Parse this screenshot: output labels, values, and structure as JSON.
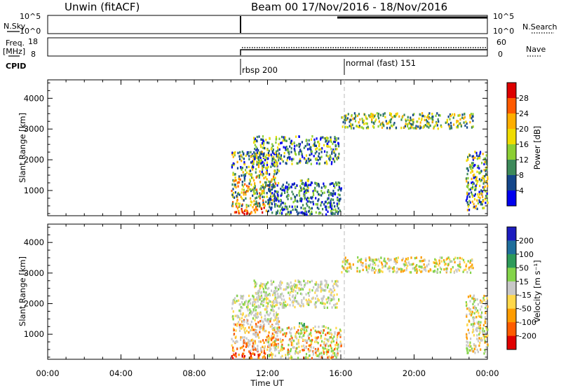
{
  "header": {
    "station": "Unwin (fitACF)",
    "beam_info": "Beam 00  17/Nov/2016 - 18/Nov/2016"
  },
  "status_panels": {
    "nsky_label": "N.Sky",
    "nsearch_label": "N.Search",
    "freq_label_line1": "Freq.",
    "freq_label_line2": "[MHz]",
    "nave_label": "Nave",
    "cpid_label": "CPID",
    "nsky_ticks": [
      "10^5",
      "10^0"
    ],
    "nsearch_ticks": [
      "10^5",
      "10^0"
    ],
    "freq_ticks": [
      "18",
      "8"
    ],
    "nave_ticks": [
      "60",
      "0"
    ],
    "freq_ylim": [
      8,
      18
    ],
    "nave_ylim": [
      0,
      60
    ],
    "cpid_segments": [
      {
        "label": "rbsp 200",
        "start_hour": 10.0
      },
      {
        "label": "normal (fast) 151",
        "start_hour": 16.0
      }
    ]
  },
  "chart_data": [
    {
      "type": "heatmap",
      "panel": "power",
      "ylabel": "Slant Range [km]",
      "xlabel": "",
      "xlim_hours": [
        0,
        24
      ],
      "ylim": [
        180,
        4600
      ],
      "yticks": [
        1000,
        2000,
        3000,
        4000
      ],
      "colorbar": {
        "label": "Power [dB]",
        "ticks": [
          "28",
          "24",
          "20",
          "16",
          "12",
          "8",
          "4"
        ],
        "colors": [
          "#dd0000",
          "#ff5a00",
          "#ffae00",
          "#f0dc00",
          "#8ccf34",
          "#3d8a5a",
          "#14468a",
          "#0000ee"
        ]
      },
      "data_window_hours": [
        10.0,
        24.0
      ],
      "regions": [
        {
          "t": [
            10.0,
            11.9
          ],
          "r": [
            250,
            500
          ],
          "levels": [
            0,
            1,
            2
          ]
        },
        {
          "t": [
            10.0,
            12.6
          ],
          "r": [
            500,
            1500
          ],
          "levels": [
            1,
            2,
            3,
            4,
            5,
            6
          ]
        },
        {
          "t": [
            10.0,
            12.6
          ],
          "r": [
            1500,
            2300
          ],
          "levels": [
            2,
            3,
            4,
            5,
            6,
            7
          ]
        },
        {
          "t": [
            11.2,
            15.9
          ],
          "r": [
            1900,
            2800
          ],
          "levels": [
            3,
            4,
            5,
            6,
            7
          ]
        },
        {
          "t": [
            13.7,
            14.2
          ],
          "r": [
            1000,
            1400
          ],
          "levels": [
            3,
            4,
            5
          ]
        },
        {
          "t": [
            12.0,
            16.0
          ],
          "r": [
            250,
            1300
          ],
          "levels": [
            4,
            5,
            6,
            7
          ]
        },
        {
          "t": [
            16.0,
            23.2
          ],
          "r": [
            3050,
            3550
          ],
          "levels": [
            2,
            3,
            4,
            5,
            6
          ]
        },
        {
          "t": [
            22.8,
            24.0
          ],
          "r": [
            400,
            2300
          ],
          "levels": [
            2,
            3,
            4,
            5,
            6,
            7
          ]
        }
      ]
    },
    {
      "type": "heatmap",
      "panel": "velocity",
      "ylabel": "Slant Range [km]",
      "xlabel": "Time UT",
      "xlim_hours": [
        0,
        24
      ],
      "ylim": [
        180,
        4600
      ],
      "yticks": [
        1000,
        2000,
        3000,
        4000
      ],
      "xtick_labels": [
        "00:00",
        "04:00",
        "08:00",
        "12:00",
        "16:00",
        "20:00",
        "00:00"
      ],
      "xtick_hours": [
        0,
        4,
        8,
        12,
        16,
        20,
        24
      ],
      "colorbar": {
        "label": "Velocity [m s⁻¹]",
        "ticks": [
          "200",
          "100",
          "50",
          "15",
          "-15",
          "-50",
          "-100",
          "-200"
        ],
        "colors": [
          "#1c1cbf",
          "#1f6f9c",
          "#2d9a5a",
          "#84d44a",
          "#c8c8c8",
          "#ffd84a",
          "#ff9c00",
          "#ff5c00",
          "#e00000"
        ]
      },
      "data_window_hours": [
        10.0,
        24.0
      ],
      "regions": [
        {
          "t": [
            10.0,
            11.9
          ],
          "r": [
            250,
            500
          ],
          "levels": [
            6,
            7,
            8
          ]
        },
        {
          "t": [
            10.0,
            12.6
          ],
          "r": [
            500,
            1500
          ],
          "levels": [
            4,
            4,
            5,
            6,
            7
          ]
        },
        {
          "t": [
            10.0,
            12.6
          ],
          "r": [
            1500,
            2300
          ],
          "levels": [
            4,
            4,
            5,
            3
          ]
        },
        {
          "t": [
            11.2,
            15.9
          ],
          "r": [
            1900,
            2800
          ],
          "levels": [
            4,
            4,
            3,
            5
          ]
        },
        {
          "t": [
            13.7,
            14.2
          ],
          "r": [
            1000,
            1400
          ],
          "levels": [
            3,
            2
          ]
        },
        {
          "t": [
            12.0,
            16.0
          ],
          "r": [
            250,
            1300
          ],
          "levels": [
            3,
            4,
            5,
            7
          ]
        },
        {
          "t": [
            16.0,
            23.2
          ],
          "r": [
            3050,
            3550
          ],
          "levels": [
            3,
            4,
            5,
            6
          ]
        },
        {
          "t": [
            22.8,
            24.0
          ],
          "r": [
            400,
            2300
          ],
          "levels": [
            4,
            4,
            3,
            5,
            6
          ]
        }
      ]
    }
  ]
}
